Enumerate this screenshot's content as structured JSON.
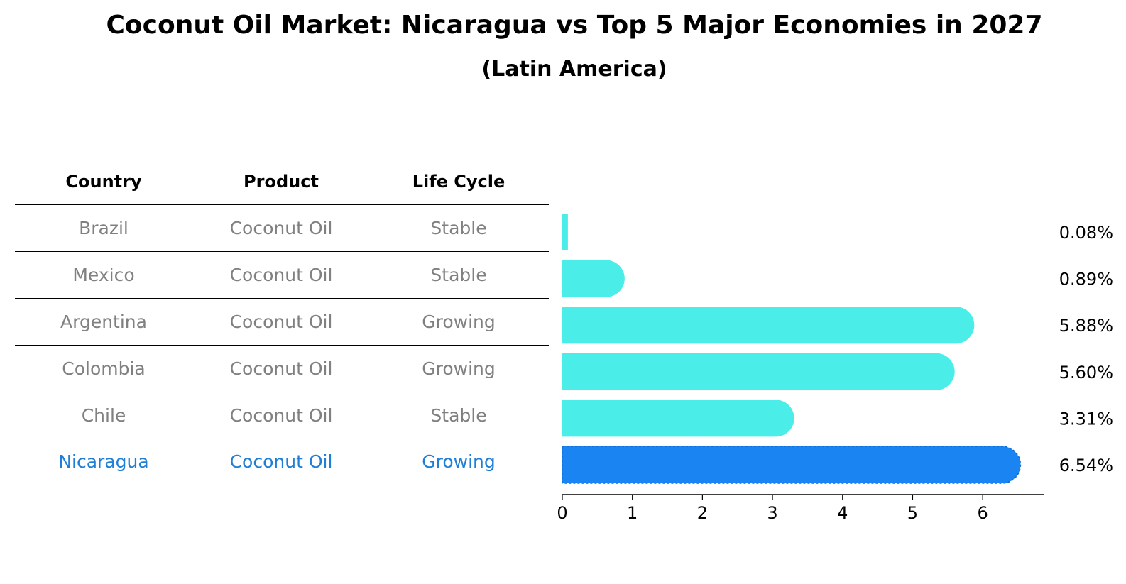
{
  "colors": {
    "bar": "#4bede8",
    "highlight_bar": "#1a84f2",
    "highlight_text": "#1f7fd6",
    "muted_text": "#808080"
  },
  "table": {
    "headers": [
      "Country",
      "Product",
      "Life Cycle"
    ],
    "rows": [
      {
        "country": "Brazil",
        "product": "Coconut Oil",
        "life_cycle": "Stable"
      },
      {
        "country": "Mexico",
        "product": "Coconut Oil",
        "life_cycle": "Stable"
      },
      {
        "country": "Argentina",
        "product": "Coconut Oil",
        "life_cycle": "Growing"
      },
      {
        "country": "Colombia",
        "product": "Coconut Oil",
        "life_cycle": "Growing"
      },
      {
        "country": "Chile",
        "product": "Coconut Oil",
        "life_cycle": "Stable"
      },
      {
        "country": "Nicaragua",
        "product": "Coconut Oil",
        "life_cycle": "Growing"
      }
    ]
  },
  "chart_data": {
    "type": "bar",
    "orientation": "horizontal",
    "title": "Coconut Oil Market: Nicaragua vs Top 5 Major Economies in 2027",
    "subtitle": "(Latin America)",
    "categories": [
      "Brazil",
      "Mexico",
      "Argentina",
      "Colombia",
      "Chile",
      "Nicaragua"
    ],
    "values": [
      0.08,
      0.89,
      5.88,
      5.6,
      3.31,
      6.54
    ],
    "data_labels": [
      "0.08%",
      "0.89%",
      "5.88%",
      "5.60%",
      "3.31%",
      "6.54%"
    ],
    "highlight_category": "Nicaragua",
    "xlim": [
      0,
      6.87
    ],
    "xticks": [
      0,
      1,
      2,
      3,
      4,
      5,
      6
    ],
    "xlabel": "",
    "ylabel": "",
    "grid": false,
    "legend": "none"
  }
}
